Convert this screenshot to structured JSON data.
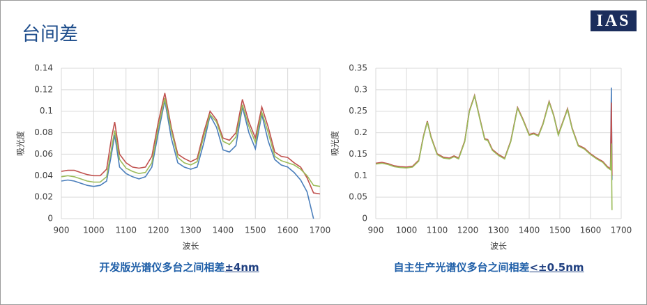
{
  "title": "台间差",
  "logo": "IAS",
  "captions": [
    {
      "text": "开发版光谱仪多台之间相差",
      "emphasis": "±4nm"
    },
    {
      "text": "自主生产光谱仪多台之间相差",
      "emphasis": "<±0.5nm"
    }
  ],
  "chart_data": [
    {
      "type": "line",
      "xlabel": "波长",
      "ylabel": "吸光度",
      "grid": true,
      "xlim": [
        900,
        1700
      ],
      "xticks": [
        900,
        1000,
        1100,
        1200,
        1300,
        1400,
        1500,
        1600,
        1700
      ],
      "ylim": [
        0,
        0.14
      ],
      "yticks": [
        0,
        0.02,
        0.04,
        0.06,
        0.08,
        0.1,
        0.12,
        0.14
      ],
      "x": [
        900,
        920,
        940,
        960,
        980,
        1000,
        1020,
        1040,
        1055,
        1065,
        1080,
        1100,
        1120,
        1140,
        1160,
        1180,
        1200,
        1220,
        1240,
        1260,
        1280,
        1300,
        1320,
        1340,
        1360,
        1380,
        1400,
        1420,
        1440,
        1460,
        1480,
        1500,
        1520,
        1540,
        1560,
        1580,
        1600,
        1620,
        1640,
        1660,
        1680,
        1700
      ],
      "series": [
        {
          "color": "#4a7ebb",
          "values": [
            0.035,
            0.036,
            0.035,
            0.033,
            0.031,
            0.03,
            0.031,
            0.035,
            0.06,
            0.078,
            0.048,
            0.042,
            0.039,
            0.037,
            0.039,
            0.048,
            0.08,
            0.11,
            0.075,
            0.052,
            0.048,
            0.046,
            0.048,
            0.07,
            0.096,
            0.085,
            0.064,
            0.062,
            0.068,
            0.104,
            0.08,
            0.065,
            0.097,
            0.072,
            0.055,
            0.05,
            0.048,
            0.043,
            0.036,
            0.025,
            0,
            null
          ]
        },
        {
          "color": "#c0504d",
          "values": [
            0.044,
            0.045,
            0.045,
            0.043,
            0.041,
            0.04,
            0.04,
            0.046,
            0.075,
            0.09,
            0.06,
            0.052,
            0.048,
            0.047,
            0.048,
            0.058,
            0.09,
            0.117,
            0.085,
            0.06,
            0.056,
            0.053,
            0.056,
            0.08,
            0.1,
            0.092,
            0.075,
            0.073,
            0.08,
            0.111,
            0.09,
            0.075,
            0.104,
            0.085,
            0.062,
            0.058,
            0.057,
            0.052,
            0.048,
            0.038,
            0.024,
            0.023
          ]
        },
        {
          "color": "#9bbb59",
          "values": [
            0.039,
            0.04,
            0.039,
            0.037,
            0.035,
            0.034,
            0.034,
            0.039,
            0.065,
            0.082,
            0.055,
            0.047,
            0.044,
            0.042,
            0.043,
            0.052,
            0.085,
            0.112,
            0.082,
            0.057,
            0.052,
            0.05,
            0.053,
            0.076,
            0.097,
            0.09,
            0.072,
            0.069,
            0.076,
            0.106,
            0.086,
            0.071,
            0.099,
            0.08,
            0.058,
            0.054,
            0.052,
            0.05,
            0.046,
            0.04,
            0.031,
            0.03
          ]
        }
      ]
    },
    {
      "type": "line",
      "xlabel": "波长",
      "ylabel": "吸光度",
      "grid": true,
      "xlim": [
        900,
        1700
      ],
      "xticks": [
        900,
        1000,
        1100,
        1200,
        1300,
        1400,
        1500,
        1600,
        1700
      ],
      "ylim": [
        0,
        0.35
      ],
      "yticks": [
        0,
        0.05,
        0.1,
        0.15,
        0.2,
        0.25,
        0.3,
        0.35
      ],
      "x": [
        900,
        920,
        940,
        960,
        980,
        1000,
        1020,
        1040,
        1055,
        1068,
        1080,
        1100,
        1120,
        1140,
        1155,
        1170,
        1190,
        1205,
        1222,
        1240,
        1255,
        1265,
        1280,
        1300,
        1320,
        1340,
        1362,
        1380,
        1400,
        1415,
        1430,
        1445,
        1465,
        1480,
        1495,
        1510,
        1525,
        1540,
        1560,
        1580,
        1600,
        1620,
        1640,
        1655,
        1665,
        1668,
        1670
      ],
      "series": [
        {
          "color": "#4a7ebb",
          "values": [
            0.128,
            0.13,
            0.127,
            0.122,
            0.12,
            0.119,
            0.121,
            0.135,
            0.19,
            0.226,
            0.19,
            0.15,
            0.142,
            0.14,
            0.145,
            0.14,
            0.18,
            0.25,
            0.286,
            0.23,
            0.185,
            0.183,
            0.16,
            0.148,
            0.14,
            0.18,
            0.258,
            0.23,
            0.195,
            0.198,
            0.193,
            0.22,
            0.272,
            0.24,
            0.195,
            0.225,
            0.255,
            0.21,
            0.17,
            0.163,
            0.15,
            0.14,
            0.132,
            0.12,
            0.115,
            0.305,
            0.09
          ]
        },
        {
          "color": "#c0504d",
          "values": [
            0.129,
            0.131,
            0.128,
            0.123,
            0.121,
            0.12,
            0.122,
            0.136,
            0.191,
            0.227,
            0.191,
            0.151,
            0.143,
            0.141,
            0.146,
            0.141,
            0.181,
            0.251,
            0.287,
            0.231,
            0.186,
            0.184,
            0.161,
            0.149,
            0.141,
            0.181,
            0.259,
            0.231,
            0.196,
            0.199,
            0.194,
            0.221,
            0.273,
            0.241,
            0.196,
            0.226,
            0.256,
            0.211,
            0.171,
            0.164,
            0.151,
            0.141,
            0.133,
            0.121,
            0.116,
            0.27,
            0.1
          ]
        },
        {
          "color": "#9bbb59",
          "values": [
            0.127,
            0.129,
            0.126,
            0.121,
            0.119,
            0.118,
            0.12,
            0.134,
            0.189,
            0.225,
            0.189,
            0.149,
            0.141,
            0.139,
            0.144,
            0.139,
            0.179,
            0.249,
            0.285,
            0.229,
            0.184,
            0.182,
            0.159,
            0.147,
            0.139,
            0.179,
            0.257,
            0.229,
            0.194,
            0.197,
            0.192,
            0.219,
            0.271,
            0.239,
            0.194,
            0.224,
            0.254,
            0.209,
            0.169,
            0.162,
            0.149,
            0.139,
            0.131,
            0.119,
            0.114,
            0.175,
            0.02
          ]
        }
      ]
    }
  ]
}
